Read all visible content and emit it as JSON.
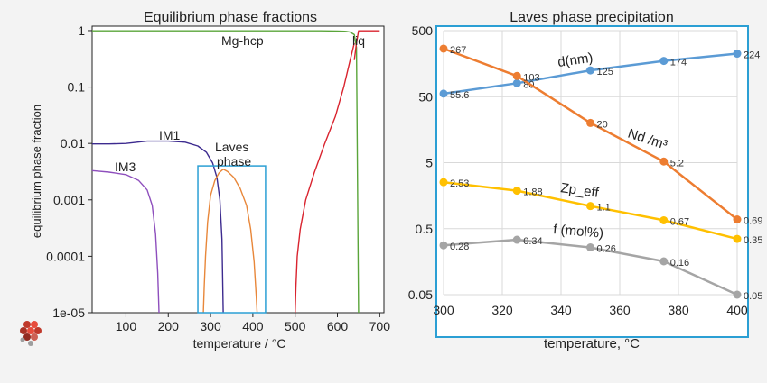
{
  "colors": {
    "left_mg_hcp": "#5aa53a",
    "left_liq": "#d9232e",
    "left_im1": "#3d2b8f",
    "left_im3": "#8e4fbd",
    "left_laves": "#e8873a",
    "left_mg_rise": "#d9232e",
    "highlight_box": "#2b9fd4",
    "d_series": "#5b9bd5",
    "nd_series": "#ed7d31",
    "zp_series": "#ffc000",
    "f_series": "#a5a5a5"
  },
  "icons": {
    "logo": "molecule-logo-icon"
  },
  "chart_data": [
    {
      "type": "line",
      "title": "Equilibrium phase fractions",
      "xlabel": "temperature / °C",
      "ylabel": "equilibrium phase fraction",
      "xlim": [
        20,
        710
      ],
      "ylim": [
        1e-05,
        1
      ],
      "yscale": "log",
      "x_ticks": [
        100,
        200,
        300,
        400,
        500,
        600,
        700
      ],
      "y_ticks": [
        {
          "value": 1,
          "label": "1"
        },
        {
          "value": 0.1,
          "label": "0.1"
        },
        {
          "value": 0.01,
          "label": "0.01"
        },
        {
          "value": 0.001,
          "label": "0.001"
        },
        {
          "value": 0.0001,
          "label": "0.0001"
        },
        {
          "value": 1e-05,
          "label": "1e-05"
        }
      ],
      "annotations": {
        "mg_hcp": "Mg-hcp",
        "liq": "liq",
        "im1": "IM1",
        "im3": "IM3",
        "laves_line1": "Laves",
        "laves_line2": "phase"
      },
      "highlight_region": {
        "x": [
          270,
          430
        ],
        "y": [
          1e-05,
          0.004
        ]
      },
      "series": [
        {
          "id": "mg_hcp",
          "x": [
            20,
            560,
            600,
            620,
            630,
            640,
            645,
            650
          ],
          "y": [
            0.99,
            0.99,
            0.985,
            0.97,
            0.94,
            0.85,
            0.5,
            1e-05
          ]
        },
        {
          "id": "liq",
          "x": [
            640,
            645,
            650,
            660,
            700
          ],
          "y": [
            0.3,
            0.6,
            0.99,
            0.99,
            0.99
          ]
        },
        {
          "id": "mg_rise",
          "x": [
            500,
            502,
            505,
            512,
            525,
            545,
            570,
            595,
            615,
            630,
            640
          ],
          "y": [
            1e-05,
            3e-05,
            0.0001,
            0.0003,
            0.001,
            0.003,
            0.01,
            0.03,
            0.1,
            0.3,
            0.6
          ]
        },
        {
          "id": "im1",
          "x": [
            20,
            60,
            100,
            150,
            200,
            240,
            270,
            290,
            305,
            315,
            322,
            327,
            330
          ],
          "y": [
            0.0098,
            0.0098,
            0.01,
            0.011,
            0.011,
            0.0105,
            0.009,
            0.007,
            0.0045,
            0.0025,
            0.001,
            0.0002,
            1e-05
          ]
        },
        {
          "id": "im3",
          "x": [
            20,
            60,
            100,
            130,
            150,
            162,
            170,
            175,
            178
          ],
          "y": [
            0.0033,
            0.0031,
            0.0028,
            0.0022,
            0.0015,
            0.0008,
            0.00025,
            5e-05,
            1e-05
          ]
        },
        {
          "id": "laves",
          "x": [
            283,
            285,
            288,
            293,
            300,
            310,
            320,
            330,
            340,
            355,
            370,
            385,
            395,
            403,
            408,
            410
          ],
          "y": [
            1e-05,
            3e-05,
            0.0001,
            0.0004,
            0.0012,
            0.0022,
            0.003,
            0.0035,
            0.0032,
            0.0025,
            0.0016,
            0.0008,
            0.0003,
            8e-05,
            2e-05,
            1e-05
          ]
        }
      ]
    },
    {
      "type": "line",
      "title": "Laves phase precipitation",
      "xlabel": "temperature, °C",
      "ylabel": "",
      "xlim": [
        300,
        400
      ],
      "ylim": [
        0.05,
        500
      ],
      "yscale": "log",
      "x_ticks": [
        300,
        320,
        340,
        360,
        380,
        400
      ],
      "y_ticks": [
        {
          "value": 500,
          "label": "500"
        },
        {
          "value": 50,
          "label": "50"
        },
        {
          "value": 5,
          "label": "5"
        },
        {
          "value": 0.5,
          "label": "0.5"
        },
        {
          "value": 0.05,
          "label": "0.05"
        }
      ],
      "x": [
        300,
        325,
        350,
        375,
        400
      ],
      "series": [
        {
          "id": "d",
          "name": "d(nm)",
          "values": [
            55.6,
            80,
            125,
            174,
            224
          ],
          "labels": [
            "55.6",
            "80",
            "125",
            "174",
            "224"
          ]
        },
        {
          "id": "nd",
          "name": "Nd /m³",
          "values": [
            267,
            103,
            20,
            5.2,
            0.69
          ],
          "labels": [
            "267",
            "103",
            "20",
            "5.2",
            "0.69"
          ]
        },
        {
          "id": "zp",
          "name": "Zp_eff",
          "values": [
            2.53,
            1.88,
            1.1,
            0.67,
            0.35
          ],
          "labels": [
            "2.53",
            "1.88",
            "1.1",
            "0.67",
            "0.35"
          ]
        },
        {
          "id": "f",
          "name": "f (mol%)",
          "values": [
            0.28,
            0.34,
            0.26,
            0.16,
            0.05
          ],
          "labels": [
            "0.28",
            "0.34",
            "0.26",
            "0.16",
            "0.05"
          ]
        }
      ]
    }
  ]
}
